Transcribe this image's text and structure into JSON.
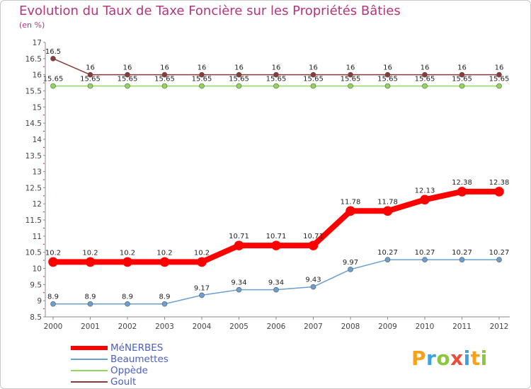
{
  "header": {
    "title": "Evolution du Taux de Taxe Foncière sur les Propriétés Bâties",
    "subtitle": "(en %)"
  },
  "chart_data": {
    "type": "line",
    "title": "Evolution du Taux de Taxe Foncière sur les Propriétés Bâties",
    "ylabel": "(en %)",
    "xlabel": "",
    "x": [
      "2000",
      "2001",
      "2002",
      "2003",
      "2004",
      "2005",
      "2006",
      "2007",
      "2008",
      "2009",
      "2010",
      "2011",
      "2012"
    ],
    "ylim": [
      8.5,
      17
    ],
    "yticks": [
      "8.5",
      "9",
      "9.5",
      "10",
      "10.5",
      "11",
      "11.5",
      "12",
      "12.5",
      "13",
      "13.5",
      "14",
      "14.5",
      "15",
      "15.5",
      "16",
      "16.5",
      "17"
    ],
    "grid": false,
    "legend_position": "bottom-left",
    "series": [
      {
        "name": "MéNERBES",
        "color": "#ff0000",
        "values": [
          10.2,
          10.2,
          10.2,
          10.2,
          10.2,
          10.71,
          10.71,
          10.71,
          11.78,
          11.78,
          12.13,
          12.38,
          12.38
        ],
        "labels": [
          "10.2",
          "10.2",
          "10.2",
          "10.2",
          "10.2",
          "10.71",
          "10.71",
          "10.71",
          "11.78",
          "11.78",
          "12.13",
          "12.38",
          "12.38"
        ]
      },
      {
        "name": "Beaumettes",
        "color": "#6a9fd0",
        "values": [
          8.9,
          8.9,
          8.9,
          8.9,
          9.17,
          9.34,
          9.34,
          9.43,
          9.97,
          10.27,
          10.27,
          10.27,
          10.27
        ],
        "labels": [
          "8.9",
          "8.9",
          "8.9",
          "8.9",
          "9.17",
          "9.34",
          "9.34",
          "9.43",
          "9.97",
          "10.27",
          "10.27",
          "10.27",
          "10.27"
        ]
      },
      {
        "name": "Oppède",
        "color": "#8fd65a",
        "values": [
          15.65,
          15.65,
          15.65,
          15.65,
          15.65,
          15.65,
          15.65,
          15.65,
          15.65,
          15.65,
          15.65,
          15.65,
          15.65
        ],
        "labels": [
          "15.65",
          "15.65",
          "15.65",
          "15.65",
          "15.65",
          "15.65",
          "15.65",
          "15.65",
          "15.65",
          "15.65",
          "15.65",
          "15.65",
          "15.65"
        ]
      },
      {
        "name": "Goult",
        "color": "#8b3a3a",
        "values": [
          16.5,
          16,
          16,
          16,
          16,
          16,
          16,
          16,
          16,
          16,
          16,
          16,
          16
        ],
        "labels": [
          "16.5",
          "16",
          "16",
          "16",
          "16",
          "16",
          "16",
          "16",
          "16",
          "16",
          "16",
          "16",
          "16"
        ]
      }
    ]
  },
  "legend": {
    "items": [
      "MéNERBES",
      "Beaumettes",
      "Oppède",
      "Goult"
    ]
  },
  "logo": {
    "letters": [
      "P",
      "r",
      "o",
      "x",
      "i",
      "t",
      "i"
    ],
    "colors": [
      "#f7a11b",
      "#3aa3e0",
      "#8cc63f",
      "#e94e3c",
      "#3aa3e0",
      "#f7a11b",
      "#8cc63f"
    ]
  }
}
